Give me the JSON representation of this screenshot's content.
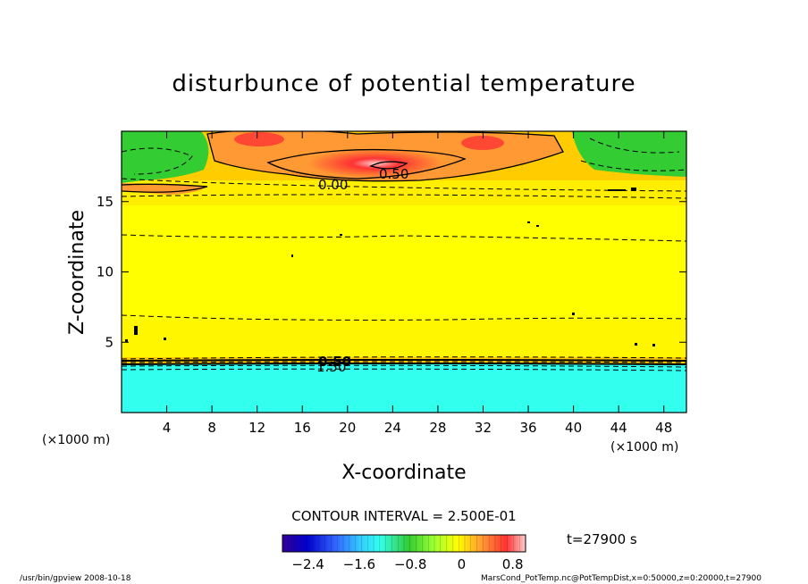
{
  "chart_data": {
    "type": "heatmap",
    "title": "disturbunce of potential temperature",
    "xlabel": "X-coordinate",
    "ylabel": "Z-coordinate",
    "x_unit": "(×1000 m)",
    "y_unit": "(×1000 m)",
    "xlim": [
      0,
      50
    ],
    "ylim": [
      0,
      20
    ],
    "x_ticks": [
      4,
      8,
      12,
      16,
      20,
      24,
      28,
      32,
      36,
      40,
      44,
      48
    ],
    "y_ticks": [
      5,
      10,
      15
    ],
    "contour_interval_text": "CONTOUR INTERVAL = 2.500E-01",
    "time_label": "t=27900 s",
    "colorbar": {
      "min": -2.8,
      "max": 1.0,
      "ticks": [
        -2.4,
        -1.6,
        -0.8,
        0,
        0.8
      ],
      "tick_labels": [
        "−2.4",
        "−1.6",
        "−0.8",
        "0",
        "0.8"
      ]
    },
    "contour_labels": [
      "0.00",
      "0.50",
      "0.50",
      "1.50"
    ],
    "bands": [
      {
        "z_from": 0,
        "z_to": 3.5,
        "value": -1.6
      },
      {
        "z_from": 3.5,
        "z_to": 4.0,
        "value": -0.5
      },
      {
        "z_from": 4.0,
        "z_to": 6.0,
        "value": 0.1
      },
      {
        "z_from": 6.0,
        "z_to": 13.0,
        "value": 0.05
      },
      {
        "z_from": 13.0,
        "z_to": 16.0,
        "value": 0.15
      },
      {
        "z_from": 16.0,
        "z_to": 20.0,
        "value": 0.3
      }
    ],
    "grid": false
  },
  "footer": {
    "left": "/usr/bin/gpview   2008-10-18",
    "right": "MarsCond_PotTemp.nc@PotTempDist,x=0:50000,z=0:20000,t=27900"
  },
  "colors": {
    "cyan": "#33ffee",
    "green": "#33cc33",
    "yellow": "#ffff00",
    "orange": "#ff9933",
    "red": "#ff3333"
  }
}
